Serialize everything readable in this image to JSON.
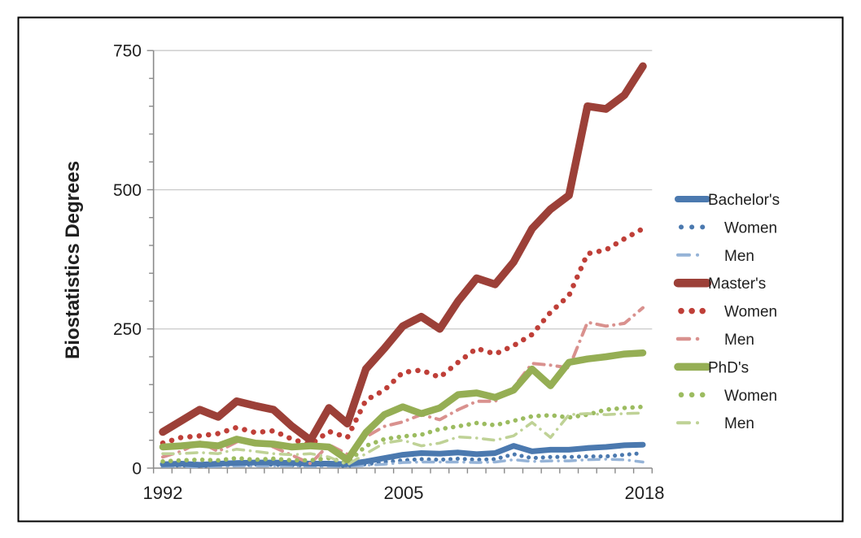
{
  "figure": {
    "background_color": "#ffffff",
    "border_color": "#000000"
  },
  "chart_data": {
    "type": "line",
    "title": "",
    "y_axis_title": "Biostatistics Degrees",
    "x_label": "",
    "x": [
      1992,
      1993,
      1994,
      1995,
      1996,
      1997,
      1998,
      1999,
      2000,
      2001,
      2002,
      2003,
      2004,
      2005,
      2006,
      2007,
      2008,
      2009,
      2010,
      2011,
      2012,
      2013,
      2014,
      2015,
      2016,
      2017,
      2018
    ],
    "x_tick_labels": [
      "1992",
      "2005",
      "2018"
    ],
    "x_tick_years": [
      1992,
      2005,
      2018
    ],
    "y_tick_labels": [
      "0",
      "250",
      "500",
      "750"
    ],
    "y_ticks": [
      0,
      250,
      500,
      750
    ],
    "ylim": [
      0,
      750
    ],
    "y_minor_step": 50,
    "grid": "horizontal-major",
    "legend_position": "right",
    "axis_color": "#8a8a8a",
    "gridline_color": "#c9c9c9",
    "series": [
      {
        "name": "Bachelor's",
        "group": "Bachelor's",
        "kind": "total",
        "style": "solid",
        "color": "#4b79af",
        "width": 7,
        "indent": false,
        "values": [
          7,
          8,
          6,
          8,
          9,
          10,
          10,
          9,
          8,
          8,
          7,
          12,
          18,
          24,
          27,
          26,
          28,
          25,
          27,
          40,
          30,
          33,
          33,
          36,
          38,
          41,
          42
        ]
      },
      {
        "name": "Women",
        "group": "Bachelor's",
        "kind": "women",
        "style": "dotted",
        "color": "#4b79af",
        "width": 5,
        "indent": true,
        "values": [
          4,
          5,
          4,
          5,
          5,
          6,
          6,
          5,
          5,
          5,
          4,
          7,
          11,
          14,
          16,
          15,
          17,
          15,
          16,
          25,
          18,
          20,
          20,
          21,
          21,
          24,
          27
        ]
      },
      {
        "name": "Men",
        "group": "Bachelor's",
        "kind": "men",
        "style": "dashdot",
        "color": "#95b3d7",
        "width": 3.5,
        "indent": true,
        "values": [
          3,
          3,
          2,
          3,
          4,
          4,
          4,
          4,
          3,
          3,
          3,
          5,
          7,
          10,
          11,
          11,
          11,
          10,
          11,
          15,
          12,
          13,
          13,
          15,
          16,
          15,
          11
        ]
      },
      {
        "name": "Master's",
        "group": "Master's",
        "kind": "total",
        "style": "solid",
        "color": "#9c4038",
        "width": 9.5,
        "indent": false,
        "values": [
          65,
          85,
          105,
          92,
          120,
          112,
          105,
          75,
          50,
          108,
          80,
          178,
          215,
          255,
          272,
          250,
          300,
          341,
          330,
          370,
          430,
          465,
          490,
          650,
          645,
          670,
          722
        ]
      },
      {
        "name": "Women",
        "group": "Master's",
        "kind": "women",
        "style": "dotted",
        "color": "#bf3f38",
        "width": 6.5,
        "indent": true,
        "values": [
          45,
          55,
          58,
          62,
          73,
          64,
          67,
          52,
          42,
          66,
          55,
          122,
          140,
          172,
          176,
          163,
          190,
          215,
          205,
          220,
          240,
          280,
          310,
          385,
          392,
          412,
          430
        ]
      },
      {
        "name": "Men",
        "group": "Master's",
        "kind": "men",
        "style": "dashdot",
        "color": "#d9918e",
        "width": 4,
        "indent": true,
        "values": [
          20,
          30,
          47,
          30,
          47,
          48,
          38,
          23,
          8,
          42,
          25,
          56,
          75,
          83,
          96,
          87,
          105,
          120,
          120,
          145,
          188,
          185,
          180,
          262,
          255,
          260,
          288
        ]
      },
      {
        "name": "PhD's",
        "group": "PhD's",
        "kind": "total",
        "style": "solid",
        "color": "#95ae54",
        "width": 8.5,
        "indent": false,
        "values": [
          38,
          40,
          43,
          40,
          52,
          45,
          43,
          38,
          40,
          38,
          15,
          64,
          96,
          110,
          98,
          108,
          132,
          135,
          127,
          140,
          178,
          148,
          190,
          196,
          200,
          205,
          207
        ]
      },
      {
        "name": "Women",
        "group": "PhD's",
        "kind": "women",
        "style": "dotted",
        "color": "#9cbc60",
        "width": 5.5,
        "indent": true,
        "values": [
          12,
          14,
          15,
          14,
          18,
          15,
          17,
          14,
          14,
          18,
          9,
          40,
          52,
          57,
          60,
          70,
          75,
          81,
          77,
          85,
          93,
          95,
          91,
          96,
          105,
          108,
          110
        ]
      },
      {
        "name": "Men",
        "group": "PhD's",
        "kind": "men",
        "style": "dashdot",
        "color": "#bfd296",
        "width": 3.5,
        "indent": true,
        "values": [
          26,
          26,
          28,
          26,
          34,
          30,
          26,
          24,
          26,
          20,
          6,
          26,
          45,
          50,
          40,
          45,
          56,
          54,
          50,
          58,
          82,
          55,
          96,
          98,
          96,
          98,
          99
        ]
      }
    ]
  }
}
